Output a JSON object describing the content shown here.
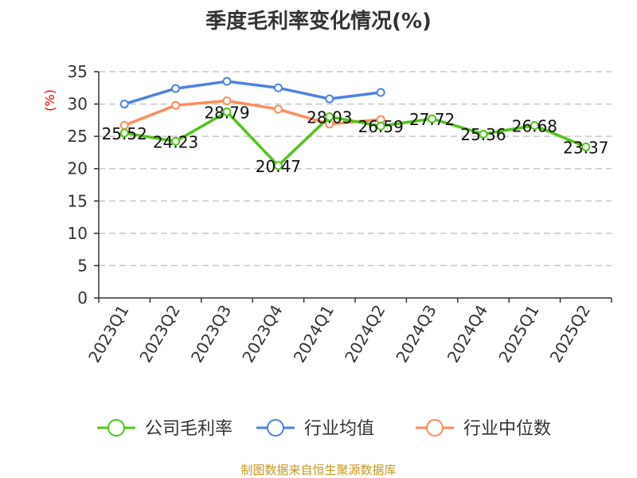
{
  "chart_data": {
    "type": "line",
    "title": "季度毛利率变化情况(%)",
    "ylabel": "(%)",
    "ylim": [
      0,
      35
    ],
    "yticks": [
      0,
      5,
      10,
      15,
      20,
      25,
      30,
      35
    ],
    "grid": true,
    "legend_position": "bottom",
    "categories": [
      "2023Q1",
      "2023Q2",
      "2023Q3",
      "2023Q4",
      "2024Q1",
      "2024Q2",
      "2024Q3",
      "2024Q4",
      "2025Q1",
      "2025Q2"
    ],
    "series": [
      {
        "name": "公司毛利率",
        "color": "#52c41a",
        "values": [
          25.52,
          24.23,
          28.79,
          20.47,
          28.03,
          26.59,
          27.72,
          25.36,
          26.68,
          23.37
        ],
        "labels": [
          "25.52",
          "24.23",
          "28.79",
          "20.47",
          "28.03",
          "26.59",
          "27.72",
          "25.36",
          "26.68",
          "23.37"
        ]
      },
      {
        "name": "行业均值",
        "color": "#4e82e0",
        "values": [
          30.0,
          32.4,
          33.5,
          32.5,
          30.8,
          31.8,
          null,
          null,
          null,
          null
        ]
      },
      {
        "name": "行业中位数",
        "color": "#ff8c5a",
        "values": [
          26.7,
          29.8,
          30.5,
          29.2,
          26.9,
          27.6,
          null,
          null,
          null,
          null
        ]
      }
    ]
  },
  "source": "制图数据来自恒生聚源数据库"
}
